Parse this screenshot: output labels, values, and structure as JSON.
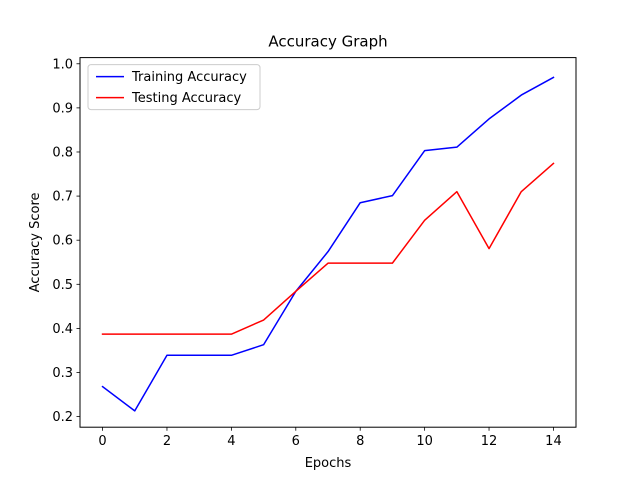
{
  "chart_data": {
    "type": "line",
    "title": "Accuracy Graph",
    "xlabel": "Epochs",
    "ylabel": "Accuracy Score",
    "x": [
      0,
      1,
      2,
      3,
      4,
      5,
      6,
      7,
      8,
      9,
      10,
      11,
      12,
      13,
      14
    ],
    "xlim": [
      -0.7,
      14.7
    ],
    "ylim": [
      0.176,
      1.014
    ],
    "xticks": [
      0,
      2,
      4,
      6,
      8,
      10,
      12,
      14
    ],
    "yticks": [
      0.2,
      0.3,
      0.4,
      0.5,
      0.6,
      0.7,
      0.8,
      0.9,
      1.0
    ],
    "xtick_labels": [
      "0",
      "2",
      "4",
      "6",
      "8",
      "10",
      "12",
      "14"
    ],
    "ytick_labels": [
      "0.2",
      "0.3",
      "0.4",
      "0.5",
      "0.6",
      "0.7",
      "0.8",
      "0.9",
      "1.0"
    ],
    "grid": false,
    "legend_position": "upper-left",
    "series": [
      {
        "name": "Training Accuracy",
        "color": "#0000ff",
        "values": [
          0.268,
          0.213,
          0.339,
          0.339,
          0.339,
          0.363,
          0.484,
          0.574,
          0.685,
          0.701,
          0.803,
          0.811,
          0.875,
          0.929,
          0.969
        ]
      },
      {
        "name": "Testing Accuracy",
        "color": "#ff0000",
        "values": [
          0.387,
          0.387,
          0.387,
          0.387,
          0.387,
          0.419,
          0.484,
          0.548,
          0.548,
          0.548,
          0.645,
          0.71,
          0.581,
          0.71,
          0.774
        ]
      }
    ]
  }
}
